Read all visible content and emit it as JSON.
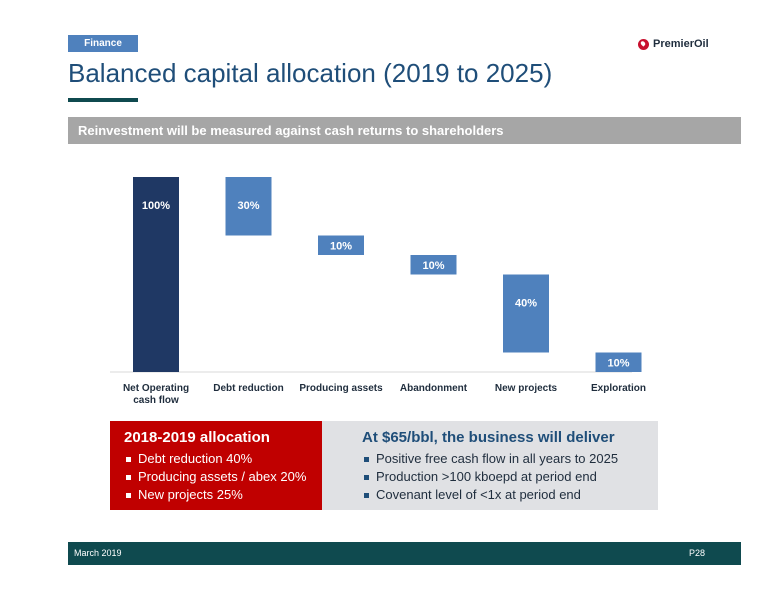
{
  "section_tag": "Finance",
  "logo_text": "PremierOil",
  "title": "Balanced capital allocation (2019 to 2025)",
  "banner": "Reinvestment will be measured against cash returns to shareholders",
  "chart_data": {
    "type": "bar",
    "subtype": "waterfall",
    "categories": [
      "Net Operating cash flow",
      "Debt reduction",
      "Producing assets",
      "Abandonment",
      "New projects",
      "Exploration"
    ],
    "values": [
      100,
      -30,
      -10,
      -10,
      -40,
      -10
    ],
    "data_labels": [
      "100%",
      "30%",
      "10%",
      "10%",
      "40%",
      "10%"
    ],
    "ylim": [
      0,
      100
    ],
    "grid": false,
    "colors": {
      "total": "#1f3864",
      "step": "#4f81bd",
      "label_dark": "#ffffff",
      "label_light": "#ffffff",
      "axis": "#d9d9d9"
    }
  },
  "allocation_box": {
    "title": "2018-2019 allocation",
    "items": [
      "Debt reduction 40%",
      "Producing assets / abex 20%",
      "New projects 25%"
    ]
  },
  "deliver_box": {
    "title": "At $65/bbl, the business will deliver",
    "items": [
      "Positive free cash flow in all years to 2025",
      "Production >100 kboepd at period end",
      "Covenant level of <1x at period end"
    ]
  },
  "footer": {
    "date": "March 2019",
    "page": "P28"
  }
}
